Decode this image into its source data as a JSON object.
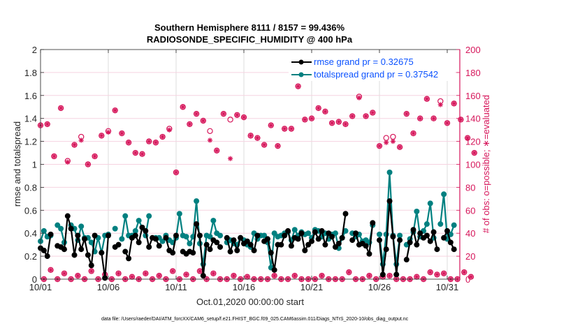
{
  "chart_data": {
    "type": "line",
    "title": "Southern Hemisphere 8111 / 8157 = 99.436%",
    "subtitle": "RADIOSONDE_SPECIFIC_HUMIDITY @ 400 hPa",
    "xlabel": "Oct.01,2020 00:00:00 start",
    "ylabel": "rmse and totalspread",
    "y2label": "# of obs: o=possible; ∗=evaluated",
    "footnote": "data file: /Users/raeder/DAI/ATM_forcXX/CAM6_setup/f.e21.FHIST_BGC.f09_025.CAM6assim.011/Diags_NTrS_2020-10/obs_diag_output.nc",
    "xlim": [
      0,
      31.25
    ],
    "ylim": [
      0,
      2
    ],
    "y2lim": [
      0,
      200
    ],
    "xticks": [
      0,
      5,
      10,
      15,
      20,
      25,
      30
    ],
    "xtick_labels": [
      "10/01",
      "10/06",
      "10/11",
      "10/16",
      "10/21",
      "10/26",
      "10/31"
    ],
    "yticks": [
      0,
      0.2,
      0.4,
      0.6,
      0.8,
      1,
      1.2,
      1.4,
      1.6,
      1.8,
      2
    ],
    "ytick_labels": [
      "0",
      "0.2",
      "0.4",
      "0.6",
      "0.8",
      "1",
      "1.2",
      "1.4",
      "1.6",
      "1.8",
      "2"
    ],
    "y2ticks": [
      0,
      20,
      40,
      60,
      80,
      100,
      120,
      140,
      160,
      180,
      200
    ],
    "y2tick_labels": [
      "0",
      "20",
      "40",
      "60",
      "80",
      "100",
      "120",
      "140",
      "160",
      "180",
      "200"
    ],
    "grid": true,
    "legend_position": "top-right",
    "legend": [
      {
        "name": "rmse grand pr = 0.32675",
        "color": "#000000"
      },
      {
        "name": "totalspread grand pr = 0.37542",
        "color": "#008080"
      }
    ],
    "x_step_days": 0.25,
    "series": [
      {
        "name": "rmse",
        "color": "#000000",
        "values": [
          0.27,
          0.25,
          0.2,
          0.39,
          null,
          0.29,
          0.28,
          0.26,
          0.55,
          0.44,
          0.21,
          0.38,
          0.26,
          0.35,
          0.21,
          0.12,
          0.38,
          null,
          0.23,
          0.01,
          0.38,
          null,
          0.28,
          0.3,
          null,
          0.24,
          0.18,
          0.36,
          0.38,
          0.32,
          0.45,
          0.42,
          0.28,
          0.36,
          0.35,
          0.29,
          null,
          0.36,
          0.25,
          0.23,
          0.38,
          null,
          0.24,
          0.22,
          0.24,
          0.23,
          0.48,
          0.38,
          0.03,
          0.3,
          0.26,
          0.34,
          0.32,
          0.28,
          null,
          0.36,
          0.24,
          0.34,
          0.25,
          0.36,
          0.31,
          0.33,
          0.3,
          0.25,
          0.38,
          null,
          0.33,
          0.35,
          0.23,
          0.08,
          0.3,
          0.3,
          0.38,
          0.42,
          0.29,
          0.36,
          0.35,
          0.4,
          0.25,
          0.3,
          0.33,
          0.41,
          0.35,
          0.42,
          0.3,
          0.4,
          0.37,
          0.28,
          0.31,
          0.36,
          0.57,
          null,
          0.34,
          0.4,
          0.3,
          0.31,
          0.29,
          0.22,
          0.49,
          null,
          0.34,
          0.04,
          0.26,
          0.68,
          0.37,
          0.04,
          0.34,
          null,
          0.17,
          0.32,
          0.43,
          0.3,
          0.4,
          0.36,
          0.38,
          0.33,
          0.41,
          0.26,
          null,
          0.36,
          0.42,
          0.32,
          0.26
        ]
      },
      {
        "name": "totalspread",
        "color": "#008080",
        "values": [
          0.33,
          0.42,
          0.37,
          0.38,
          null,
          0.47,
          0.44,
          0.32,
          null,
          0.47,
          0.44,
          0.34,
          0.46,
          0.36,
          0.36,
          0.32,
          0.24,
          0.36,
          0.23,
          0.38,
          0.39,
          null,
          0.44,
          null,
          0.35,
          0.55,
          0.38,
          0.38,
          0.42,
          0.51,
          0.45,
          0.38,
          0.55,
          null,
          0.36,
          0.36,
          0.33,
          0.38,
          0.34,
          0.32,
          0.36,
          0.57,
          0.38,
          0.37,
          0.31,
          0.37,
          0.68,
          0.31,
          0.13,
          0.38,
          0.37,
          0.51,
          0.4,
          0.38,
          null,
          0.32,
          0.34,
          0.31,
          0.3,
          0.36,
          0.34,
          0.3,
          0.28,
          0.4,
          0.35,
          0.38,
          0.38,
          0.32,
          0.1,
          0.4,
          0.37,
          0.38,
          0.4,
          0.41,
          0.34,
          0.43,
          0.38,
          0.41,
          0.39,
          0.4,
          0.36,
          0.43,
          0.42,
          0.37,
          0.4,
          0.35,
          0.39,
          0.4,
          0.27,
          0.36,
          0.42,
          null,
          0.4,
          0.37,
          0.39,
          0.33,
          0.34,
          0.32,
          0.47,
          null,
          0.39,
          0.13,
          0.39,
          0.93,
          0.38,
          0.13,
          0.38,
          null,
          0.3,
          0.35,
          0.41,
          0.59,
          0.37,
          0.42,
          0.48,
          0.66,
          0.36,
          null,
          0.48,
          0.74,
          0.35,
          0.39,
          0.47
        ]
      },
      {
        "name": "nobs_possible",
        "color": "#d6155a",
        "axis": "right",
        "values": [
          134,
          0,
          135,
          8,
          107,
          0,
          149,
          5,
          103,
          0,
          117,
          3,
          124,
          0,
          100,
          7,
          107,
          0,
          125,
          4,
          129,
          0,
          147,
          5,
          127,
          0,
          119,
          2,
          110,
          0,
          109,
          5,
          120,
          0,
          119,
          3,
          124,
          0,
          131,
          7,
          93,
          0,
          150,
          4,
          135,
          0,
          144,
          7,
          138,
          0,
          129,
          5,
          112,
          0,
          144,
          0,
          139,
          3,
          143,
          0,
          141,
          2,
          125,
          0,
          123,
          0,
          117,
          0,
          134,
          3,
          116,
          0,
          131,
          0,
          131,
          3,
          168,
          0,
          139,
          0,
          140,
          0,
          149,
          3,
          146,
          0,
          136,
          0,
          137,
          0,
          135,
          6,
          142,
          0,
          159,
          0,
          142,
          3,
          145,
          0,
          116,
          2,
          123,
          3,
          124,
          0,
          115,
          0,
          144,
          0,
          127,
          2,
          140,
          0,
          157,
          6,
          140,
          4,
          155,
          5,
          136,
          0,
          153,
          0,
          139,
          6,
          123,
          2,
          110
        ]
      },
      {
        "name": "nobs_evaluated",
        "color": "#d6155a",
        "axis": "right",
        "values": [
          134,
          0,
          135,
          8,
          107,
          0,
          149,
          5,
          102,
          0,
          117,
          3,
          121,
          0,
          100,
          7,
          107,
          0,
          125,
          4,
          128,
          0,
          147,
          5,
          127,
          0,
          119,
          2,
          110,
          0,
          109,
          5,
          120,
          0,
          119,
          3,
          124,
          0,
          130,
          7,
          93,
          0,
          150,
          4,
          135,
          0,
          144,
          7,
          138,
          0,
          121,
          5,
          112,
          0,
          144,
          0,
          105,
          3,
          143,
          0,
          141,
          2,
          125,
          0,
          123,
          0,
          117,
          0,
          134,
          3,
          116,
          0,
          131,
          0,
          131,
          3,
          168,
          0,
          139,
          0,
          140,
          0,
          149,
          3,
          146,
          0,
          136,
          0,
          137,
          0,
          135,
          6,
          142,
          0,
          158,
          0,
          142,
          3,
          145,
          0,
          116,
          2,
          119,
          3,
          120,
          0,
          115,
          0,
          144,
          0,
          127,
          2,
          140,
          0,
          157,
          6,
          140,
          4,
          152,
          5,
          136,
          0,
          153,
          0,
          139,
          6,
          123,
          2,
          110
        ]
      }
    ]
  }
}
